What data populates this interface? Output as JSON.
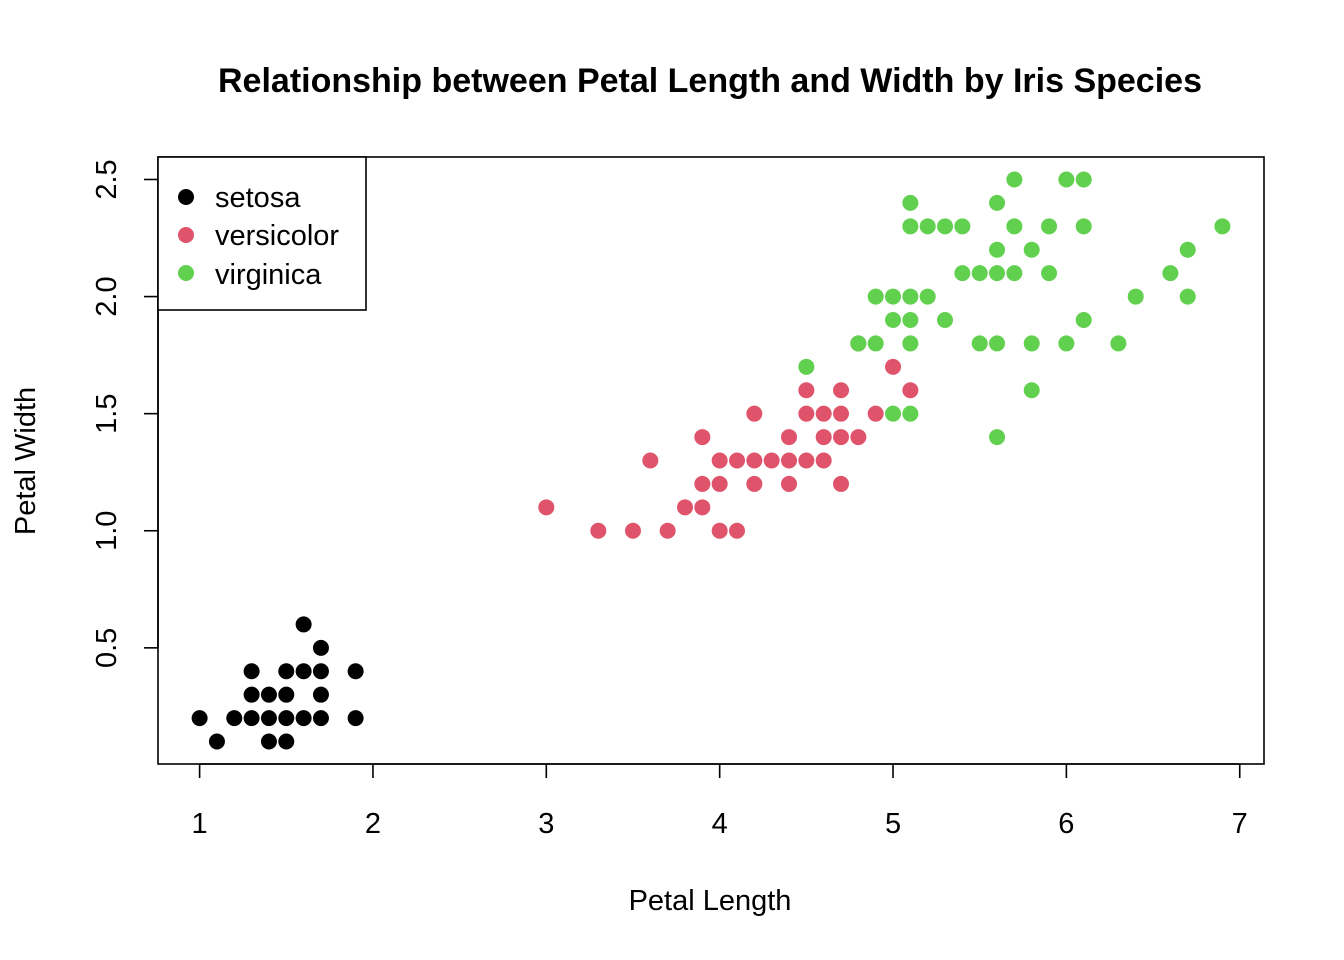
{
  "chart_data": {
    "type": "scatter",
    "title": "Relationship between Petal Length and Width by Iris Species",
    "xlabel": "Petal Length",
    "ylabel": "Petal Width",
    "xlim": [
      0.76,
      7.14
    ],
    "ylim": [
      0.004,
      2.596
    ],
    "x_ticks": [
      "1",
      "2",
      "3",
      "4",
      "5",
      "6",
      "7"
    ],
    "y_ticks": [
      "0.5",
      "1.0",
      "1.5",
      "2.0",
      "2.5"
    ],
    "grid": false,
    "legend_position": "top-left",
    "series": [
      {
        "name": "setosa",
        "color": "#000000",
        "points": [
          [
            1.0,
            0.2
          ],
          [
            1.1,
            0.1
          ],
          [
            1.2,
            0.2
          ],
          [
            1.3,
            0.2
          ],
          [
            1.3,
            0.3
          ],
          [
            1.3,
            0.4
          ],
          [
            1.4,
            0.1
          ],
          [
            1.4,
            0.2
          ],
          [
            1.4,
            0.3
          ],
          [
            1.5,
            0.1
          ],
          [
            1.5,
            0.2
          ],
          [
            1.5,
            0.3
          ],
          [
            1.5,
            0.4
          ],
          [
            1.6,
            0.2
          ],
          [
            1.6,
            0.4
          ],
          [
            1.6,
            0.6
          ],
          [
            1.7,
            0.2
          ],
          [
            1.7,
            0.3
          ],
          [
            1.7,
            0.4
          ],
          [
            1.7,
            0.5
          ],
          [
            1.9,
            0.2
          ],
          [
            1.9,
            0.4
          ]
        ]
      },
      {
        "name": "versicolor",
        "color": "#DF536B",
        "points": [
          [
            3.0,
            1.1
          ],
          [
            3.3,
            1.0
          ],
          [
            3.5,
            1.0
          ],
          [
            3.6,
            1.3
          ],
          [
            3.7,
            1.0
          ],
          [
            3.8,
            1.1
          ],
          [
            3.9,
            1.1
          ],
          [
            3.9,
            1.2
          ],
          [
            3.9,
            1.4
          ],
          [
            4.0,
            1.0
          ],
          [
            4.0,
            1.2
          ],
          [
            4.0,
            1.3
          ],
          [
            4.1,
            1.0
          ],
          [
            4.1,
            1.3
          ],
          [
            4.2,
            1.2
          ],
          [
            4.2,
            1.3
          ],
          [
            4.2,
            1.5
          ],
          [
            4.3,
            1.3
          ],
          [
            4.4,
            1.2
          ],
          [
            4.4,
            1.3
          ],
          [
            4.4,
            1.4
          ],
          [
            4.5,
            1.3
          ],
          [
            4.5,
            1.5
          ],
          [
            4.5,
            1.6
          ],
          [
            4.6,
            1.3
          ],
          [
            4.6,
            1.4
          ],
          [
            4.6,
            1.5
          ],
          [
            4.7,
            1.2
          ],
          [
            4.7,
            1.4
          ],
          [
            4.7,
            1.5
          ],
          [
            4.7,
            1.6
          ],
          [
            4.8,
            1.4
          ],
          [
            4.8,
            1.8
          ],
          [
            4.9,
            1.5
          ],
          [
            5.0,
            1.7
          ],
          [
            5.1,
            1.6
          ]
        ]
      },
      {
        "name": "virginica",
        "color": "#61D04F",
        "points": [
          [
            4.5,
            1.7
          ],
          [
            4.8,
            1.8
          ],
          [
            4.9,
            1.8
          ],
          [
            4.9,
            2.0
          ],
          [
            5.0,
            1.5
          ],
          [
            5.0,
            1.9
          ],
          [
            5.0,
            2.0
          ],
          [
            5.1,
            1.5
          ],
          [
            5.1,
            1.8
          ],
          [
            5.1,
            1.9
          ],
          [
            5.1,
            2.0
          ],
          [
            5.1,
            2.3
          ],
          [
            5.1,
            2.4
          ],
          [
            5.2,
            2.0
          ],
          [
            5.2,
            2.3
          ],
          [
            5.3,
            1.9
          ],
          [
            5.3,
            2.3
          ],
          [
            5.4,
            2.1
          ],
          [
            5.4,
            2.3
          ],
          [
            5.5,
            1.8
          ],
          [
            5.5,
            2.1
          ],
          [
            5.6,
            1.4
          ],
          [
            5.6,
            1.8
          ],
          [
            5.6,
            2.1
          ],
          [
            5.6,
            2.2
          ],
          [
            5.6,
            2.4
          ],
          [
            5.7,
            2.1
          ],
          [
            5.7,
            2.3
          ],
          [
            5.7,
            2.5
          ],
          [
            5.8,
            1.6
          ],
          [
            5.8,
            1.8
          ],
          [
            5.8,
            2.2
          ],
          [
            5.9,
            2.1
          ],
          [
            5.9,
            2.3
          ],
          [
            6.0,
            1.8
          ],
          [
            6.0,
            2.5
          ],
          [
            6.1,
            1.9
          ],
          [
            6.1,
            2.3
          ],
          [
            6.1,
            2.5
          ],
          [
            6.3,
            1.8
          ],
          [
            6.4,
            2.0
          ],
          [
            6.6,
            2.1
          ],
          [
            6.7,
            2.0
          ],
          [
            6.7,
            2.2
          ],
          [
            6.9,
            2.3
          ]
        ]
      }
    ]
  }
}
